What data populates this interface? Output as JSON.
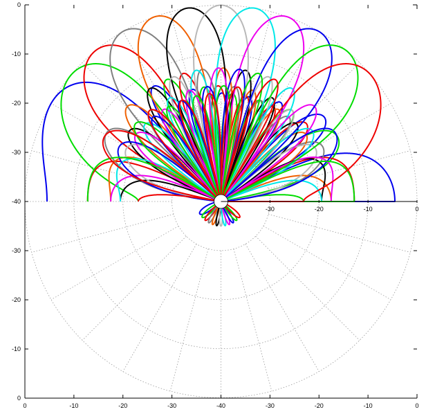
{
  "chart_data": {
    "type": "polar-line",
    "title": "",
    "xlabel": "",
    "ylabel": "",
    "radial_scale": {
      "min_db": -40,
      "max_db": 0,
      "ring_labels": [
        "-30",
        "-20",
        "-10",
        "0"
      ],
      "ring_values": [
        -30,
        -20,
        -10,
        0
      ]
    },
    "frame_x_ticks": [
      "0",
      "-10",
      "-20",
      "-30",
      "-40",
      "-30",
      "-20",
      "-10",
      "0"
    ],
    "frame_y_ticks": [
      "0",
      "-10",
      "-20",
      "-30",
      "-40",
      "-30",
      "-20",
      "-10",
      "0"
    ],
    "spoke_step_deg": 15,
    "grid": true,
    "legend": "none",
    "series": [
      {
        "steer_deg": -60,
        "peak_db": 0,
        "sidelobe_db": -13,
        "back_db": -35,
        "color": "#0000ee"
      },
      {
        "steer_deg": -50,
        "peak_db": 0,
        "sidelobe_db": -13,
        "back_db": -35,
        "color": "#00dd00"
      },
      {
        "steer_deg": -40,
        "peak_db": 0,
        "sidelobe_db": -13,
        "back_db": -35,
        "color": "#ee0000"
      },
      {
        "steer_deg": -30,
        "peak_db": 0,
        "sidelobe_db": -13,
        "back_db": -35,
        "color": "#808080"
      },
      {
        "steer_deg": -20,
        "peak_db": 0,
        "sidelobe_db": -13,
        "back_db": -35,
        "color": "#f06000"
      },
      {
        "steer_deg": -10,
        "peak_db": 0,
        "sidelobe_db": -13,
        "back_db": -35,
        "color": "#000000"
      },
      {
        "steer_deg": 0,
        "peak_db": 0,
        "sidelobe_db": -13,
        "back_db": -35,
        "color": "#b8b8b8"
      },
      {
        "steer_deg": 10,
        "peak_db": 0,
        "sidelobe_db": -13,
        "back_db": -35,
        "color": "#00e8e8"
      },
      {
        "steer_deg": 20,
        "peak_db": 0,
        "sidelobe_db": -13,
        "back_db": -35,
        "color": "#ee00ee"
      },
      {
        "steer_deg": 30,
        "peak_db": 0,
        "sidelobe_db": -13,
        "back_db": -35,
        "color": "#0000ee"
      },
      {
        "steer_deg": 40,
        "peak_db": 0,
        "sidelobe_db": -13,
        "back_db": -35,
        "color": "#00dd00"
      },
      {
        "steer_deg": 50,
        "peak_db": 0,
        "sidelobe_db": -13,
        "back_db": -35,
        "color": "#ee0000"
      }
    ]
  }
}
